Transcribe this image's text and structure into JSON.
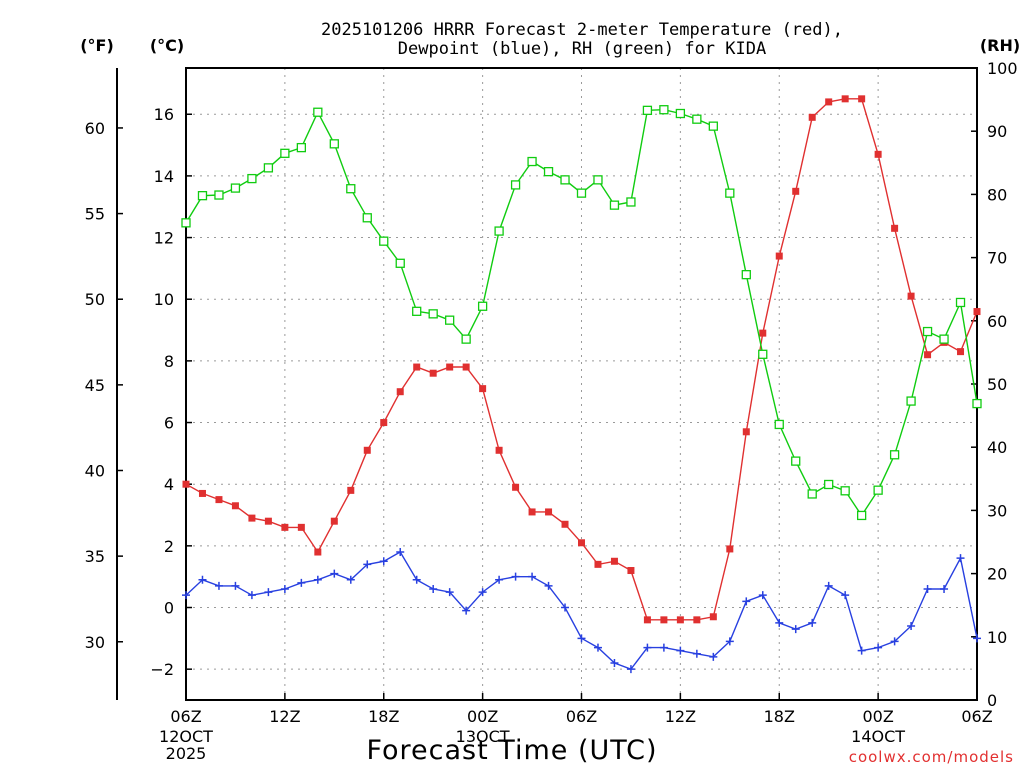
{
  "chart_data": {
    "type": "line",
    "title_lines": [
      "2025101206 HRRR Forecast 2-meter Temperature (red),",
      "Dewpoint (blue), RH (green) for KIDA"
    ],
    "xlabel": "Forecast Time (UTC)",
    "credit": "coolwx.com/models",
    "units": {
      "left_outer": "(°F)",
      "left_inner": "(°C)",
      "right": "(RH)"
    },
    "x_ticks": [
      "06Z",
      "12Z",
      "18Z",
      "00Z",
      "06Z",
      "12Z",
      "18Z",
      "00Z",
      "06Z"
    ],
    "x_date_labels": [
      {
        "hour": 0,
        "lines": [
          "12OCT",
          "2025"
        ]
      },
      {
        "hour": 18,
        "lines": [
          "13OCT"
        ]
      },
      {
        "hour": 42,
        "lines": [
          "14OCT"
        ]
      }
    ],
    "x_range_hours": [
      0,
      48
    ],
    "ylim_c": [
      -3,
      17.5
    ],
    "y_ticks_c": [
      "-2",
      "0",
      "2",
      "4",
      "6",
      "8",
      "10",
      "12",
      "14",
      "16"
    ],
    "y_ticks_f": [
      "30",
      "35",
      "40",
      "45",
      "50",
      "55",
      "60"
    ],
    "ylim_rh": [
      0,
      100
    ],
    "y_ticks_rh": [
      "0",
      "10",
      "20",
      "30",
      "40",
      "50",
      "60",
      "70",
      "80",
      "90",
      "100"
    ],
    "grid": true,
    "colors": {
      "temperature": "#e03030",
      "dewpoint": "#2840e0",
      "rh": "#10cc10"
    },
    "series": [
      {
        "name": "Temperature",
        "axis": "celsius",
        "marker": "filled-square",
        "values": [
          4.0,
          3.7,
          3.5,
          3.3,
          2.9,
          2.8,
          2.6,
          2.6,
          1.8,
          2.8,
          3.8,
          5.1,
          6.0,
          7.0,
          7.8,
          7.6,
          7.8,
          7.8,
          7.1,
          5.1,
          3.9,
          3.1,
          3.1,
          2.7,
          2.1,
          1.4,
          1.5,
          1.2,
          -0.4,
          -0.4,
          -0.4,
          -0.4,
          -0.3,
          1.9,
          5.7,
          8.9,
          11.4,
          13.5,
          15.9,
          16.4,
          16.5,
          16.5,
          14.7,
          12.3,
          10.1,
          8.2,
          8.6,
          8.3,
          9.6
        ]
      },
      {
        "name": "Dewpoint",
        "axis": "celsius",
        "marker": "plus",
        "values": [
          0.4,
          0.9,
          0.7,
          0.7,
          0.4,
          0.5,
          0.6,
          0.8,
          0.9,
          1.1,
          0.9,
          1.4,
          1.5,
          1.8,
          0.9,
          0.6,
          0.5,
          -0.1,
          0.5,
          0.9,
          1.0,
          1.0,
          0.7,
          0.0,
          -1.0,
          -1.3,
          -1.8,
          -2.0,
          -1.3,
          -1.3,
          -1.4,
          -1.5,
          -1.6,
          -1.1,
          0.2,
          0.4,
          -0.5,
          -0.7,
          -0.5,
          0.7,
          0.4,
          -1.4,
          -1.3,
          -1.1,
          -0.6,
          0.6,
          0.6,
          1.6,
          -1.0
        ]
      },
      {
        "name": "RH",
        "axis": "rh",
        "marker": "open-square",
        "values": [
          75.5,
          79.8,
          79.9,
          81.0,
          82.5,
          84.2,
          86.5,
          87.4,
          93.0,
          88.0,
          80.9,
          76.3,
          72.6,
          69.1,
          61.5,
          61.1,
          60.1,
          57.1,
          62.3,
          74.2,
          81.5,
          85.2,
          83.6,
          82.3,
          80.2,
          82.3,
          78.3,
          78.8,
          93.3,
          93.4,
          92.8,
          91.9,
          90.8,
          80.2,
          67.3,
          54.7,
          43.6,
          37.8,
          32.6,
          34.1,
          33.1,
          29.2,
          33.2,
          38.8,
          47.3,
          58.3,
          57.1,
          62.9,
          46.9
        ]
      }
    ]
  }
}
